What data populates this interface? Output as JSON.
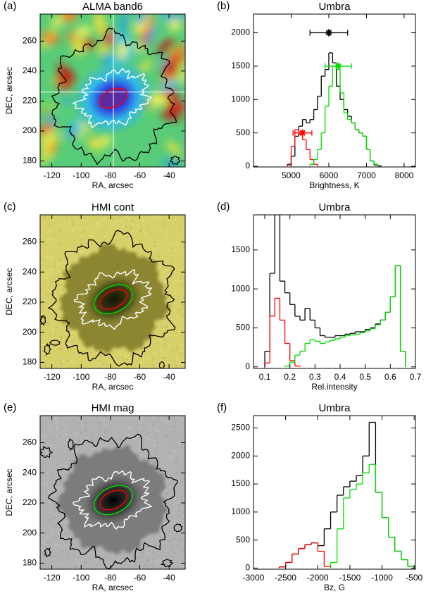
{
  "chart_data": [
    {
      "type": "image",
      "label": "(a)",
      "title": "ALMA band6",
      "xlabel": "RA, arcsec",
      "ylabel": "DEC, arcsec",
      "colormap": "rainbow",
      "xlim": [
        -128,
        -29
      ],
      "ylim": [
        176,
        278
      ],
      "xticks": [
        -120,
        -100,
        -80,
        -60,
        -40
      ],
      "yticks": [
        180,
        200,
        220,
        240,
        260
      ]
    },
    {
      "type": "histogram",
      "label": "(b)",
      "title": "Umbra",
      "xlabel": "Brightness, K",
      "xlim": [
        4000,
        8300
      ],
      "ylim": [
        -10,
        2280
      ],
      "xticks": [
        5000,
        6000,
        7000,
        8000
      ],
      "yticks": [
        0,
        500,
        1000,
        1500,
        2000
      ],
      "series": [
        {
          "color": "#000000",
          "bins": [
            4900,
            5000,
            5100,
            5200,
            5300,
            5400,
            5500,
            5600,
            5700,
            5800,
            5900,
            6000,
            6100,
            6200,
            6300,
            6400,
            6500,
            6600,
            6700,
            6800,
            6900,
            7000,
            7100,
            7200,
            7300,
            7400
          ],
          "values": [
            30,
            150,
            450,
            600,
            700,
            650,
            700,
            850,
            1050,
            1350,
            1450,
            1700,
            1550,
            1200,
            1000,
            850,
            750,
            650,
            550,
            500,
            450,
            250,
            80,
            20,
            5
          ]
        },
        {
          "color": "#ff0000",
          "bins": [
            4900,
            5000,
            5100,
            5200,
            5300,
            5400,
            5500,
            5600,
            5700
          ],
          "values": [
            20,
            300,
            550,
            480,
            400,
            250,
            100,
            30
          ]
        },
        {
          "color": "#00dd00",
          "bins": [
            5500,
            5600,
            5700,
            5800,
            5900,
            6000,
            6100,
            6200,
            6300,
            6400,
            6500,
            6600,
            6700,
            6800,
            6900,
            7000,
            7100,
            7200,
            7300
          ],
          "values": [
            30,
            100,
            250,
            500,
            900,
            1200,
            1500,
            1450,
            1100,
            800,
            700,
            650,
            550,
            500,
            450,
            250,
            80,
            30
          ]
        }
      ],
      "points": [
        {
          "color": "#000000",
          "x": 6000,
          "y": 2000,
          "xerr": 500
        },
        {
          "color": "#00dd00",
          "x": 6250,
          "y": 1500,
          "xerr": 350
        },
        {
          "color": "#ff0000",
          "x": 5300,
          "y": 500,
          "xerr": 250
        }
      ]
    },
    {
      "type": "image",
      "label": "(c)",
      "title": "HMI cont",
      "xlabel": "RA, arcsec",
      "ylabel": "DEC, arcsec",
      "colormap": "yellow",
      "xlim": [
        -128,
        -29
      ],
      "ylim": [
        176,
        278
      ],
      "xticks": [
        -120,
        -100,
        -80,
        -60,
        -40
      ],
      "yticks": [
        180,
        200,
        220,
        240,
        260
      ]
    },
    {
      "type": "histogram",
      "label": "(d)",
      "title": "Umbra",
      "xlabel": "Rel.intensity",
      "xlim": [
        0.055,
        0.7
      ],
      "ylim": [
        -20,
        1950
      ],
      "xticks": [
        0.1,
        0.2,
        0.3,
        0.4,
        0.5,
        0.6,
        0.7
      ],
      "yticks": [
        0,
        500,
        1000,
        1500
      ],
      "series": [
        {
          "color": "#000000",
          "bins": [
            0.1,
            0.12,
            0.14,
            0.16,
            0.18,
            0.2,
            0.22,
            0.24,
            0.26,
            0.28,
            0.3,
            0.32,
            0.34,
            0.36,
            0.38,
            0.4,
            0.42,
            0.44,
            0.46,
            0.48,
            0.5,
            0.52,
            0.54,
            0.56,
            0.58,
            0.6,
            0.62,
            0.64,
            0.66
          ],
          "values": [
            200,
            1200,
            2100,
            1100,
            950,
            800,
            650,
            600,
            750,
            600,
            500,
            400,
            380,
            380,
            400,
            400,
            420,
            430,
            450,
            450,
            480,
            500,
            550,
            600,
            700,
            900,
            1300,
            200
          ]
        },
        {
          "color": "#ff0000",
          "bins": [
            0.1,
            0.12,
            0.14,
            0.16,
            0.18,
            0.2,
            0.22,
            0.24
          ],
          "values": [
            50,
            650,
            880,
            600,
            300,
            80,
            10
          ]
        },
        {
          "color": "#00dd00",
          "bins": [
            0.18,
            0.2,
            0.22,
            0.24,
            0.26,
            0.28,
            0.3,
            0.32,
            0.34,
            0.36,
            0.38,
            0.4,
            0.42,
            0.44,
            0.46,
            0.48,
            0.5,
            0.52,
            0.54,
            0.56,
            0.58,
            0.6,
            0.62,
            0.64,
            0.66
          ],
          "values": [
            10,
            60,
            150,
            200,
            300,
            350,
            330,
            300,
            320,
            340,
            360,
            380,
            400,
            410,
            420,
            440,
            460,
            490,
            540,
            600,
            700,
            900,
            1300,
            200
          ]
        }
      ]
    },
    {
      "type": "image",
      "label": "(e)",
      "title": "HMI mag",
      "xlabel": "RA, arcsec",
      "ylabel": "DEC, arcsec",
      "colormap": "gray",
      "xlim": [
        -128,
        -29
      ],
      "ylim": [
        176,
        278
      ],
      "xticks": [
        -120,
        -100,
        -80,
        -60,
        -40
      ],
      "yticks": [
        180,
        200,
        220,
        240,
        260
      ]
    },
    {
      "type": "histogram",
      "label": "(f)",
      "title": "Umbra",
      "xlabel": "Bz, G",
      "xlim": [
        -3000,
        -480
      ],
      "ylim": [
        -20,
        2720
      ],
      "xticks": [
        -3000,
        -2500,
        -2000,
        -1500,
        -1000,
        -500
      ],
      "yticks": [
        0,
        500,
        1000,
        1500,
        2000,
        2500
      ],
      "series": [
        {
          "color": "#000000",
          "bins": [
            -2600,
            -2500,
            -2400,
            -2300,
            -2200,
            -2100,
            -2000,
            -1900,
            -1800,
            -1700,
            -1600,
            -1500,
            -1400,
            -1300,
            -1200,
            -1100,
            -1000,
            -900,
            -800,
            -700,
            -600,
            -500
          ],
          "values": [
            20,
            100,
            250,
            350,
            420,
            450,
            400,
            700,
            1000,
            1300,
            1450,
            1550,
            1650,
            2000,
            2600,
            1350,
            900,
            550,
            300,
            150,
            30
          ]
        },
        {
          "color": "#ff0000",
          "bins": [
            -2600,
            -2500,
            -2400,
            -2300,
            -2200,
            -2100,
            -2000,
            -1900,
            -1800
          ],
          "values": [
            20,
            100,
            250,
            350,
            420,
            450,
            300,
            30
          ]
        },
        {
          "color": "#00dd00",
          "bins": [
            -1800,
            -1700,
            -1600,
            -1500,
            -1400,
            -1300,
            -1200,
            -1100,
            -1000,
            -900,
            -800,
            -700,
            -600,
            -500
          ],
          "values": [
            100,
            700,
            1250,
            1400,
            1500,
            1700,
            1850,
            1350,
            900,
            550,
            300,
            150,
            30
          ]
        }
      ]
    }
  ]
}
